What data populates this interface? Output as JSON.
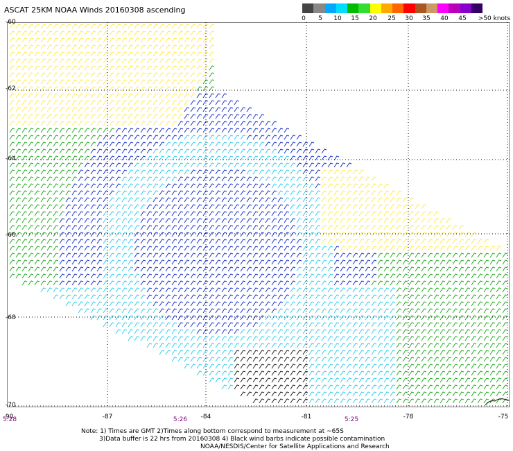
{
  "title": "ASCAT 25KM NOAA Winds 20160308 ascending",
  "colorbar": {
    "colors": [
      "#444444",
      "#888888",
      "#00aaff",
      "#00ddff",
      "#00bb00",
      "#33dd33",
      "#ffff00",
      "#ffaa00",
      "#ff6600",
      "#ff0000",
      "#aa5522",
      "#cc9966",
      "#ff00ff",
      "#bb00bb",
      "#8800cc",
      "#330066"
    ],
    "labels": [
      "0",
      "5",
      "10",
      "15",
      "20",
      "25",
      "30",
      "35",
      "40",
      "45",
      ">50 knots"
    ]
  },
  "axes": {
    "lat_labels": [
      "-60",
      "-62",
      "-64",
      "-66",
      "-68",
      "-70"
    ],
    "lon_labels": [
      "-90",
      "-87",
      "-84",
      "-81",
      "-78",
      "-75"
    ],
    "time_labels": [
      "5:28",
      "5:26",
      "5:25"
    ]
  },
  "notes": [
    "Note: 1) Times are GMT 2)Times along bottom correspond to measurement at ~65S",
    "3)Data buffer is 22 hrs from 20160308 4) Black wind barbs indicate possible contamination",
    "NOAA/NESDIS/Center for Satellite Applications and Research"
  ]
}
